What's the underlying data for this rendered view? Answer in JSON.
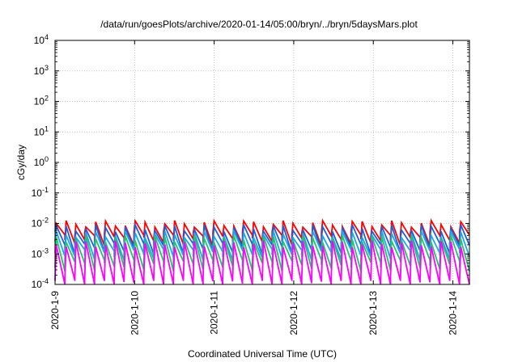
{
  "chart_data": {
    "type": "line",
    "title": "/data/run/goesPlots/archive/2020-01-14/05:00/bryn/../bryn/5daysMars.plot",
    "xlabel": "Coordinated Universal Time (UTC)",
    "ylabel": "cGy/day",
    "y_scale": "log",
    "ylim": [
      0.0001,
      10000
    ],
    "y_ticks": [
      {
        "value": 10000,
        "base": "10",
        "exp": "4"
      },
      {
        "value": 1000,
        "base": "10",
        "exp": "3"
      },
      {
        "value": 100,
        "base": "10",
        "exp": "2"
      },
      {
        "value": 10,
        "base": "10",
        "exp": "1"
      },
      {
        "value": 1,
        "base": "10",
        "exp": "0"
      },
      {
        "value": 0.1,
        "base": "10",
        "exp": "-1"
      },
      {
        "value": 0.01,
        "base": "10",
        "exp": "-2"
      },
      {
        "value": 0.001,
        "base": "10",
        "exp": "-3"
      },
      {
        "value": 0.0001,
        "base": "10",
        "exp": "-4"
      }
    ],
    "x_start": "2020-01-09",
    "x_end": "2020-01-14 05:00",
    "x_ticks": [
      "2020-1-9",
      "2020-1-10",
      "2020-1-11",
      "2020-1-12",
      "2020-1-13",
      "2020-1-14"
    ],
    "grid": true,
    "sawtooth_cycles": 42,
    "series": [
      {
        "color": "#ff0000",
        "peak": 0.01,
        "trough": 0.003
      },
      {
        "color": "#1e5fd8",
        "peak": 0.0072,
        "trough": 0.0016
      },
      {
        "color": "#1aa7e6",
        "peak": 0.0045,
        "trough": 0.001
      },
      {
        "color": "#22c46a",
        "peak": 0.0032,
        "trough": 0.00045
      },
      {
        "color": "#ff00ff",
        "peak": 0.0022,
        "trough": 0.0001
      }
    ]
  }
}
